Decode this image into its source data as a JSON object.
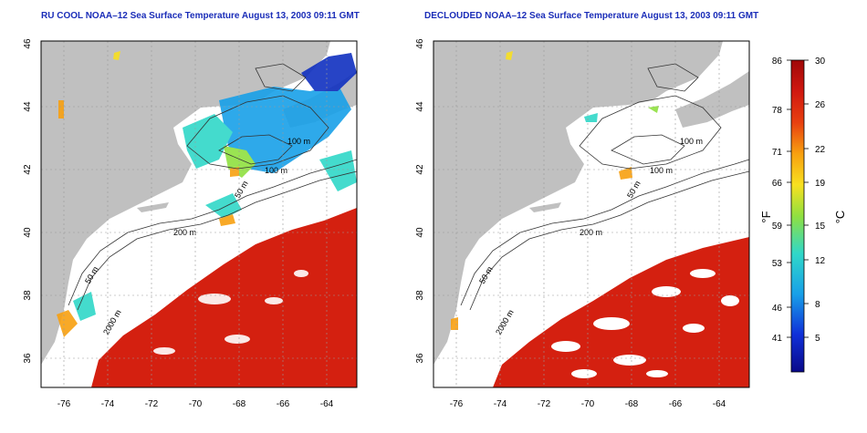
{
  "maps": [
    {
      "title": "RU COOL NOAA–12 Sea Surface Temperature August 13, 2003 09:11 GMT",
      "x_ticks": [
        "-76",
        "-74",
        "-72",
        "-70",
        "-68",
        "-66",
        "-64"
      ],
      "y_ticks": [
        "46",
        "44",
        "42",
        "40",
        "38",
        "36"
      ],
      "contour_labels": [
        "100 m",
        "100 m",
        "50 m",
        "200 m",
        "50 m",
        "2000 m"
      ]
    },
    {
      "title": "DECLOUDED NOAA–12 Sea Surface Temperature August 13, 2003 09:11 GMT",
      "x_ticks": [
        "-76",
        "-74",
        "-72",
        "-70",
        "-68",
        "-66",
        "-64"
      ],
      "y_ticks": [
        "46",
        "44",
        "42",
        "40",
        "38",
        "36"
      ],
      "contour_labels": [
        "100 m",
        "100 m",
        "50 m",
        "200 m",
        "50 m",
        "2000 m"
      ]
    }
  ],
  "colorbar": {
    "fahrenheit_ticks": [
      "86",
      "78",
      "71",
      "66",
      "59",
      "53",
      "46",
      "41"
    ],
    "celsius_ticks": [
      "30",
      "26",
      "22",
      "19",
      "15",
      "12",
      "8",
      "5"
    ],
    "fahrenheit_unit": "°F",
    "celsius_unit": "°C"
  },
  "colors": {
    "title": "#1a2db8",
    "land": "#c0c0c0",
    "sea_masked": "#ffffff",
    "warm": "#d42010",
    "cold": "#1030c0"
  }
}
